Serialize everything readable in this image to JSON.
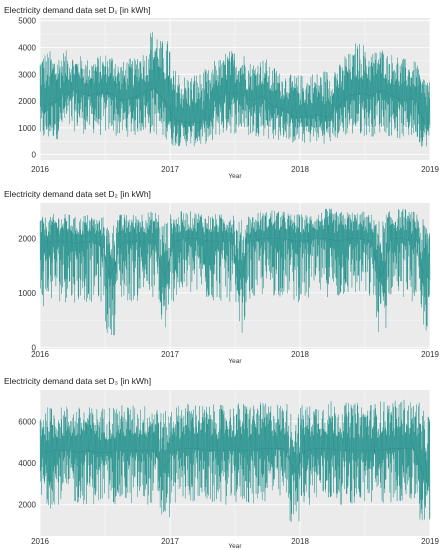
{
  "figure": {
    "colors": {
      "panel_bg": "#ebebeb",
      "grid": "#ffffff",
      "series": "#1e8f8a",
      "series_dark": "#2f6f7a"
    }
  },
  "chart_data": [
    {
      "type": "line",
      "title": "Electricity demand data set D₁ [in kWh]",
      "xlabel": "Year",
      "ylabel": "",
      "x_range": [
        "2016-01-01",
        "2019-01-01"
      ],
      "xticks": [
        "2016",
        "2017",
        "2018",
        "2019"
      ],
      "ylim": [
        -200,
        5100
      ],
      "yticks": [
        0,
        1000,
        2000,
        3000,
        4000,
        5000
      ],
      "grid": true,
      "series": [
        {
          "x": [
            "2016-01",
            "2016-02",
            "2016-03",
            "2016-04",
            "2016-05",
            "2016-06",
            "2016-07",
            "2016-08",
            "2016-09",
            "2016-10",
            "2016-11",
            "2016-12",
            "2017-01",
            "2017-02",
            "2017-03",
            "2017-04",
            "2017-05",
            "2017-06",
            "2017-07",
            "2017-08",
            "2017-09",
            "2017-10",
            "2017-11",
            "2017-12",
            "2018-01",
            "2018-02",
            "2018-03",
            "2018-04",
            "2018-05",
            "2018-06",
            "2018-07",
            "2018-08",
            "2018-09",
            "2018-10",
            "2018-11",
            "2018-12"
          ],
          "y": [
            1800,
            2000,
            2300,
            2400,
            2200,
            2300,
            2300,
            2000,
            2100,
            2300,
            2500,
            2000,
            1300,
            1200,
            1200,
            1300,
            2100,
            2300,
            2300,
            2000,
            2200,
            1800,
            1700,
            1400,
            1400,
            1500,
            1400,
            1800,
            2200,
            2300,
            2200,
            2400,
            2200,
            2000,
            2100,
            1200
          ],
          "min": [
            300,
            400,
            600,
            700,
            600,
            500,
            600,
            500,
            500,
            600,
            500,
            400,
            200,
            200,
            200,
            300,
            500,
            600,
            600,
            500,
            500,
            400,
            400,
            300,
            300,
            300,
            300,
            400,
            500,
            500,
            500,
            600,
            500,
            400,
            400,
            200
          ],
          "max": [
            3900,
            3800,
            3900,
            3700,
            3600,
            3700,
            3800,
            3500,
            3600,
            3900,
            4700,
            4300,
            3200,
            3000,
            3100,
            3200,
            3600,
            3900,
            3800,
            3500,
            3600,
            3300,
            3100,
            3000,
            3000,
            3100,
            3200,
            3400,
            3800,
            4200,
            3900,
            4000,
            3800,
            3600,
            3500,
            3000
          ]
        }
      ]
    },
    {
      "type": "line",
      "title": "Electricity demand data set D₂ [in kWh]",
      "xlabel": "Year",
      "ylabel": "",
      "x_range": [
        "2016-01-01",
        "2019-01-01"
      ],
      "xticks": [
        "2016",
        "2017",
        "2018",
        "2019"
      ],
      "ylim": [
        -30,
        2650
      ],
      "yticks": [
        0,
        1000,
        2000
      ],
      "grid": true,
      "series": [
        {
          "x": [
            "2016-01",
            "2016-02",
            "2016-03",
            "2016-04",
            "2016-05",
            "2016-06",
            "2016-07",
            "2016-08",
            "2016-09",
            "2016-10",
            "2016-11",
            "2016-12",
            "2017-01",
            "2017-02",
            "2017-03",
            "2017-04",
            "2017-05",
            "2017-06",
            "2017-07",
            "2017-08",
            "2017-09",
            "2017-10",
            "2017-11",
            "2017-12",
            "2018-01",
            "2018-02",
            "2018-03",
            "2018-04",
            "2018-05",
            "2018-06",
            "2018-07",
            "2018-08",
            "2018-09",
            "2018-10",
            "2018-11",
            "2018-12"
          ],
          "y": [
            1900,
            1950,
            1950,
            1900,
            1950,
            1900,
            1300,
            1900,
            1950,
            1950,
            1950,
            1300,
            1950,
            2000,
            2000,
            1950,
            1950,
            1950,
            1300,
            1950,
            2000,
            2000,
            2000,
            1950,
            1950,
            2000,
            2000,
            1950,
            2000,
            2000,
            1950,
            1300,
            2000,
            2000,
            1950,
            1300
          ],
          "min": [
            600,
            700,
            700,
            700,
            700,
            700,
            100,
            700,
            700,
            800,
            700,
            150,
            700,
            800,
            800,
            700,
            700,
            700,
            150,
            700,
            800,
            800,
            800,
            700,
            700,
            800,
            800,
            700,
            800,
            800,
            700,
            150,
            800,
            800,
            700,
            150
          ],
          "max": [
            2400,
            2450,
            2450,
            2400,
            2450,
            2400,
            2300,
            2450,
            2450,
            2500,
            2500,
            2350,
            2450,
            2500,
            2500,
            2450,
            2450,
            2500,
            2350,
            2450,
            2500,
            2550,
            2500,
            2450,
            2450,
            2500,
            2550,
            2500,
            2500,
            2500,
            2450,
            2350,
            2500,
            2550,
            2500,
            2350
          ]
        }
      ]
    },
    {
      "type": "line",
      "title": "Electricity demand data set D₃ [in kWh]",
      "xlabel": "Year",
      "ylabel": "",
      "x_range": [
        "2016-01-01",
        "2019-01-01"
      ],
      "xticks": [
        "2016",
        "2017",
        "2018",
        "2019"
      ],
      "ylim": [
        500,
        7500
      ],
      "yticks": [
        2000,
        4000,
        6000
      ],
      "grid": true,
      "series": [
        {
          "x": [
            "2016-01",
            "2016-02",
            "2016-03",
            "2016-04",
            "2016-05",
            "2016-06",
            "2016-07",
            "2016-08",
            "2016-09",
            "2016-10",
            "2016-11",
            "2016-12",
            "2017-01",
            "2017-02",
            "2017-03",
            "2017-04",
            "2017-05",
            "2017-06",
            "2017-07",
            "2017-08",
            "2017-09",
            "2017-10",
            "2017-11",
            "2017-12",
            "2018-01",
            "2018-02",
            "2018-03",
            "2018-04",
            "2018-05",
            "2018-06",
            "2018-07",
            "2018-08",
            "2018-09",
            "2018-10",
            "2018-11",
            "2018-12"
          ],
          "y": [
            4500,
            4600,
            4600,
            4500,
            4600,
            4500,
            4500,
            4600,
            4600,
            4600,
            4600,
            3800,
            4600,
            4700,
            4700,
            4600,
            4600,
            4600,
            4600,
            4600,
            4700,
            4700,
            4700,
            3600,
            4600,
            4700,
            4700,
            4600,
            4600,
            4600,
            4600,
            4600,
            4700,
            4700,
            4700,
            3300
          ],
          "min": [
            1500,
            1700,
            1700,
            1700,
            1700,
            1700,
            1700,
            1700,
            1700,
            1700,
            1700,
            900,
            1700,
            1800,
            1800,
            1700,
            1700,
            1700,
            1700,
            1700,
            1800,
            1800,
            1800,
            800,
            1700,
            1800,
            1800,
            1700,
            1700,
            1700,
            1700,
            1700,
            1800,
            1800,
            1700,
            700
          ],
          "max": [
            6700,
            6700,
            6800,
            6700,
            6700,
            6700,
            6800,
            6800,
            6800,
            6800,
            6900,
            6500,
            6800,
            6900,
            6900,
            6800,
            6800,
            6800,
            6900,
            6900,
            6900,
            6900,
            6900,
            6500,
            6800,
            6900,
            7000,
            6900,
            6900,
            6900,
            6900,
            7000,
            7000,
            7100,
            7000,
            6500
          ]
        }
      ]
    }
  ]
}
